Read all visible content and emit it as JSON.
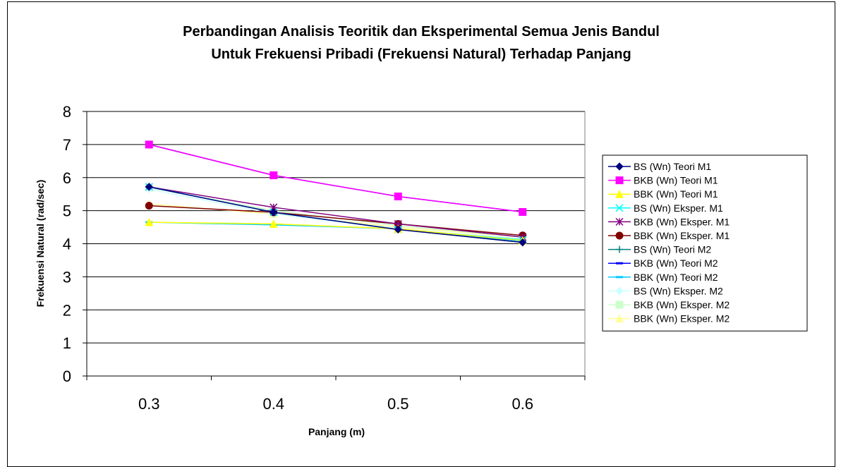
{
  "chart_data": {
    "type": "line",
    "title_lines": [
      "Perbandingan Analisis Teoritik dan Eksperimental Semua Jenis Bandul",
      "Untuk Frekuensi Pribadi (Frekuensi Natural) Terhadap Panjang"
    ],
    "xlabel": "Panjang (m)",
    "ylabel": "Frekuensi Natural (rad/sec)",
    "categories": [
      "0.3",
      "0.4",
      "0.5",
      "0.6"
    ],
    "ylim": [
      0,
      8
    ],
    "yticks": [
      "0",
      "1",
      "2",
      "3",
      "4",
      "5",
      "6",
      "7",
      "8"
    ],
    "grid": "horizontal",
    "legend_position": "right",
    "series": [
      {
        "name": "BS (Wn) Teori M1",
        "values": [
          5.72,
          4.95,
          4.43,
          4.04
        ],
        "color": "#000080",
        "marker": "diamond"
      },
      {
        "name": "BKB (Wn) Teori M1",
        "values": [
          7.0,
          6.07,
          5.43,
          4.96
        ],
        "color": "#FF00FF",
        "marker": "square"
      },
      {
        "name": "BBK (Wn) Teori M1",
        "values": [
          4.65,
          4.6,
          4.45,
          4.1
        ],
        "color": "#FFFF00",
        "marker": "triangle"
      },
      {
        "name": "BS (Wn) Eksper. M1",
        "values": [
          5.72,
          4.95,
          4.43,
          4.12
        ],
        "color": "#00FFFF",
        "marker": "x"
      },
      {
        "name": "BKB (Wn) Eksper. M1",
        "values": [
          5.72,
          5.1,
          4.6,
          4.2
        ],
        "color": "#800080",
        "marker": "star"
      },
      {
        "name": "BBK (Wn) Eksper. M1",
        "values": [
          5.15,
          4.95,
          4.6,
          4.25
        ],
        "color": "#800000",
        "marker": "circle"
      },
      {
        "name": "BS (Wn) Teori M2",
        "values": [
          5.72,
          4.95,
          4.43,
          4.04
        ],
        "color": "#008080",
        "marker": "plus"
      },
      {
        "name": "BKB (Wn) Teori M2",
        "values": [
          7.0,
          6.07,
          5.43,
          4.96
        ],
        "color": "#0000FF",
        "marker": "dash"
      },
      {
        "name": "BBK (Wn) Teori M2",
        "values": [
          4.65,
          4.57,
          4.45,
          4.08
        ],
        "color": "#00CCFF",
        "marker": "dash"
      },
      {
        "name": "BS (Wn) Eksper. M2",
        "values": [
          5.65,
          4.9,
          4.45,
          4.15
        ],
        "color": "#CCFFFF",
        "marker": "diamond"
      },
      {
        "name": "BKB (Wn) Eksper. M2",
        "values": [
          5.7,
          5.0,
          4.55,
          4.2
        ],
        "color": "#CCFFCC",
        "marker": "square"
      },
      {
        "name": "BBK (Wn) Eksper. M2",
        "values": [
          5.2,
          4.9,
          4.5,
          4.2
        ],
        "color": "#FFFF99",
        "marker": "triangle"
      }
    ]
  }
}
